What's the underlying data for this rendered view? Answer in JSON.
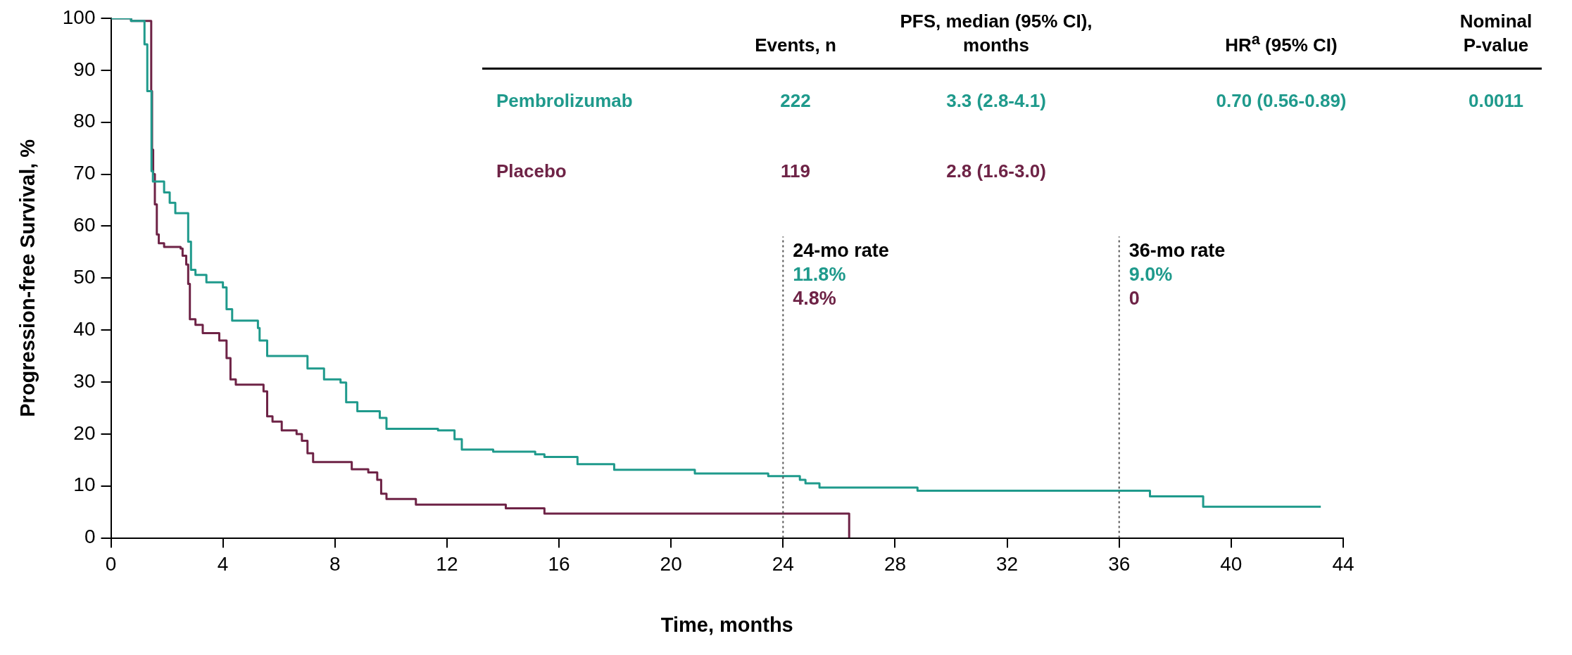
{
  "chart_data": {
    "type": "step",
    "xlabel": "Time, months",
    "ylabel": "Progression-free Survival, %",
    "xlim": [
      0,
      44
    ],
    "xticks": [
      0,
      4,
      8,
      12,
      16,
      20,
      24,
      28,
      32,
      36,
      40,
      44
    ],
    "ylim": [
      0,
      100
    ],
    "yticks": [
      0,
      10,
      20,
      30,
      40,
      50,
      60,
      70,
      80,
      90,
      100
    ],
    "grid": false,
    "legend": false,
    "line_style": "solid",
    "marker": "none",
    "series": [
      {
        "name": "Pembrolizumab",
        "color": "#1f9a8c",
        "x": [
          0,
          0.72,
          1.2,
          1.3,
          1.45,
          1.5,
          1.9,
          2.1,
          2.3,
          2.76,
          2.86,
          3.02,
          3.41,
          4.0,
          4.13,
          4.33,
          5.25,
          5.31,
          5.58,
          7.02,
          7.61,
          8.2,
          8.4,
          8.8,
          9.6,
          9.84,
          11.68,
          12.27,
          12.53,
          13.65,
          15.15,
          15.48,
          16.66,
          17.97,
          20.85,
          23.47,
          24.6,
          24.8,
          25.3,
          28.8,
          37.1,
          39.0,
          43.2
        ],
        "values": [
          100,
          99.5,
          95,
          86,
          70.6,
          68.6,
          66.5,
          64.5,
          62.5,
          57,
          51.6,
          50.6,
          49.2,
          48.2,
          44,
          41.8,
          40.4,
          38,
          35,
          32.6,
          30.5,
          29.9,
          26.1,
          24.4,
          23.1,
          21,
          20.7,
          19,
          17,
          16.6,
          16.1,
          15.6,
          14.2,
          13.1,
          12.4,
          11.9,
          11.2,
          10.5,
          9.7,
          9.1,
          8.0,
          6.0,
          6.0
        ]
      },
      {
        "name": "Placebo",
        "color": "#6e2346",
        "x": [
          0,
          0.72,
          1.44,
          1.47,
          1.51,
          1.57,
          1.64,
          1.71,
          1.9,
          2.49,
          2.56,
          2.69,
          2.76,
          2.82,
          3.02,
          3.28,
          3.87,
          4.13,
          4.27,
          4.46,
          5.45,
          5.58,
          5.77,
          6.1,
          6.63,
          6.82,
          7.02,
          7.22,
          8.6,
          9.19,
          9.51,
          9.65,
          9.84,
          10.89,
          14.1,
          15.48,
          26.36,
          26.36
        ],
        "values": [
          100,
          99.5,
          86,
          74.7,
          70,
          64.2,
          58.4,
          56.7,
          56,
          55.7,
          54.3,
          52.6,
          48.9,
          42.1,
          41,
          39.4,
          38,
          34.6,
          30.5,
          29.5,
          28.2,
          23.4,
          22.4,
          20.7,
          20,
          18.7,
          16.3,
          14.6,
          13.2,
          12.6,
          11.2,
          8.5,
          7.5,
          6.4,
          5.7,
          4.7,
          4.7,
          0
        ]
      }
    ],
    "ref_lines": [
      {
        "axis": "x",
        "value": 24,
        "label": "24-mo rate\n11.8%\n4.8%",
        "color": "#555555",
        "line_style": "dotted"
      },
      {
        "axis": "x",
        "value": 36,
        "label": "36-mo rate\n9.0%\n0",
        "color": "#555555",
        "line_style": "dotted"
      }
    ],
    "annotations": [
      "Events, n",
      "PFS, median (95% CI), months",
      "HR$^{a}$ (95% CI)",
      "Nominal P-value",
      "222",
      "3.3 (2.8-4.1)",
      "0.70 (0.56-0.89)",
      "0.0011",
      "119",
      "2.8 (1.6-3.0)"
    ]
  }
}
